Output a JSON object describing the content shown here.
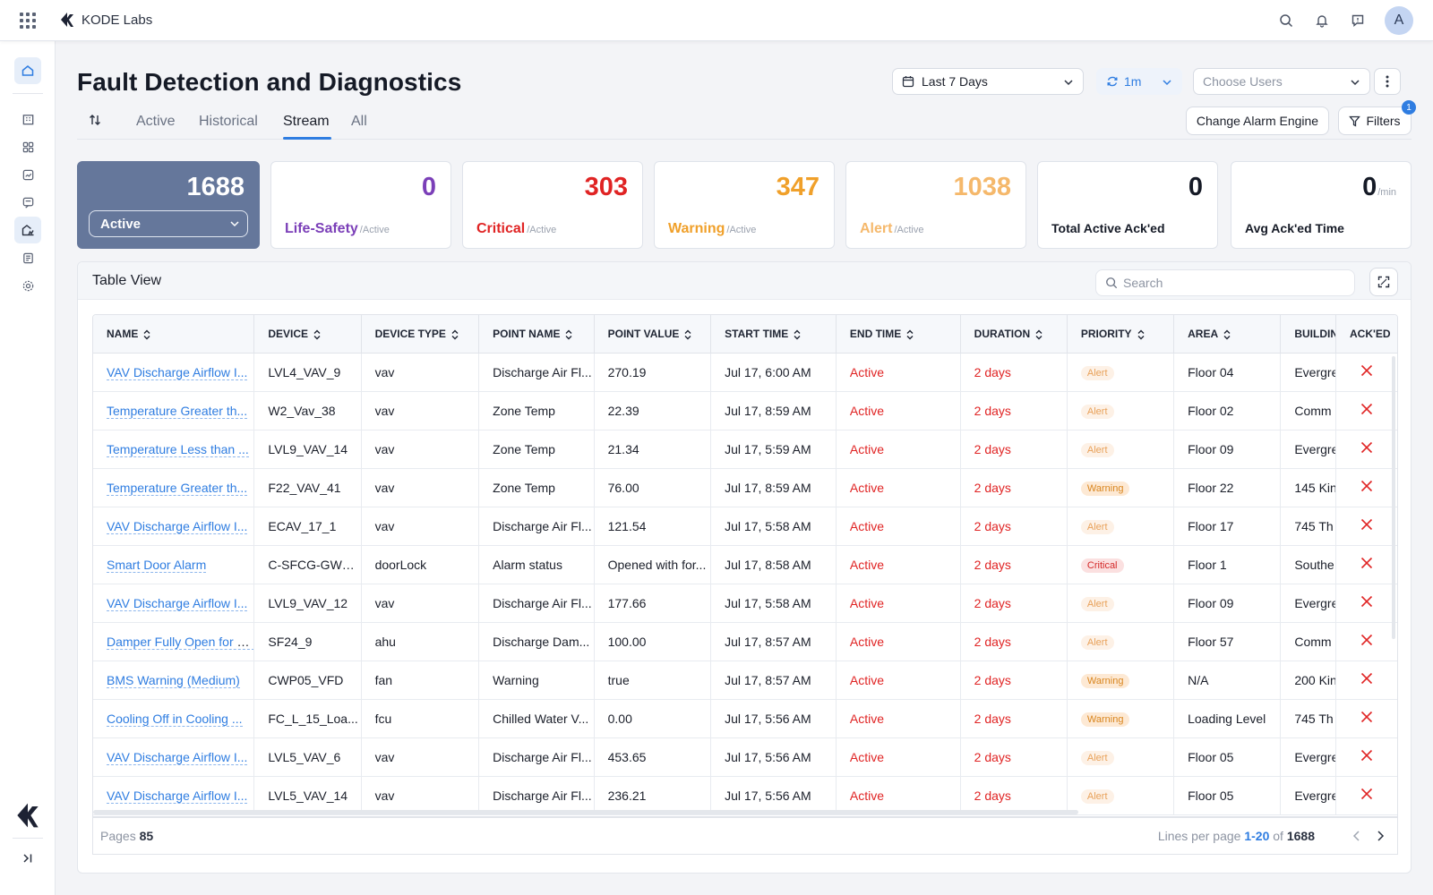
{
  "app": {
    "brand": "KODE Labs",
    "avatar_initial": "A"
  },
  "icons": {
    "apps": "grid-icon",
    "search": "search-icon",
    "notifications": "bell-icon",
    "messages": "chat-icon",
    "sidebar": [
      "home-icon",
      "building-icon",
      "apps-icon",
      "analytics-icon",
      "tasks-icon",
      "fdd-icon",
      "reports-icon",
      "settings-icon"
    ]
  },
  "header": {
    "title": "Fault Detection and Diagnostics",
    "date_range": "Last 7 Days",
    "refresh_interval": "1m",
    "users_placeholder": "Choose Users"
  },
  "tabs": [
    {
      "label": "Active",
      "active": false
    },
    {
      "label": "Historical",
      "active": false
    },
    {
      "label": "Stream",
      "active": true
    },
    {
      "label": "All",
      "active": false
    }
  ],
  "actions": {
    "change_engine": "Change Alarm Engine",
    "filters": "Filters",
    "filters_count": "1"
  },
  "stats": {
    "active": {
      "value": "1688",
      "select": "Active"
    },
    "life_safety": {
      "value": "0",
      "label": "Life-Safety",
      "sub": "/Active"
    },
    "critical": {
      "value": "303",
      "label": "Critical",
      "sub": "/Active"
    },
    "warning": {
      "value": "347",
      "label": "Warning",
      "sub": "/Active"
    },
    "alert": {
      "value": "1038",
      "label": "Alert",
      "sub": "/Active"
    },
    "total_acked": {
      "value": "0",
      "label": "Total Active Ack'ed"
    },
    "avg_acked": {
      "value": "0",
      "unit": "/min",
      "label": "Avg Ack'ed Time"
    }
  },
  "colors": {
    "accent": "#2f7de1",
    "life_safety": "#7b3fb8",
    "critical": "#e02424",
    "warning": "#f0a02a",
    "alert": "#f5b86b",
    "active_card": "#65779b"
  },
  "table": {
    "title": "Table View",
    "search_placeholder": "Search",
    "columns": [
      "NAME",
      "DEVICE",
      "DEVICE TYPE",
      "POINT NAME",
      "POINT VALUE",
      "START TIME",
      "END TIME",
      "DURATION",
      "PRIORITY",
      "AREA",
      "BUILDIN",
      "ACK'ED"
    ],
    "rows": [
      {
        "name": "VAV Discharge Airflow I...",
        "device": "LVL4_VAV_9",
        "type": "vav",
        "point": "Discharge Air Fl...",
        "value": "270.19",
        "start": "Jul 17, 6:00 AM",
        "end": "Active",
        "duration": "2 days",
        "priority": "Alert",
        "area": "Floor 04",
        "building": "Evergre"
      },
      {
        "name": "Temperature Greater th...",
        "device": "W2_Vav_38",
        "type": "vav",
        "point": "Zone Temp",
        "value": "22.39",
        "start": "Jul 17, 8:59 AM",
        "end": "Active",
        "duration": "2 days",
        "priority": "Alert",
        "area": "Floor 02",
        "building": "Comm"
      },
      {
        "name": "Temperature Less than ...",
        "device": "LVL9_VAV_14",
        "type": "vav",
        "point": "Zone Temp",
        "value": "21.34",
        "start": "Jul 17, 5:59 AM",
        "end": "Active",
        "duration": "2 days",
        "priority": "Alert",
        "area": "Floor 09",
        "building": "Evergre"
      },
      {
        "name": "Temperature Greater th...",
        "device": "F22_VAV_41",
        "type": "vav",
        "point": "Zone Temp",
        "value": "76.00",
        "start": "Jul 17, 8:59 AM",
        "end": "Active",
        "duration": "2 days",
        "priority": "Warning",
        "area": "Floor 22",
        "building": "145 Kin"
      },
      {
        "name": "VAV Discharge Airflow I...",
        "device": "ECAV_17_1",
        "type": "vav",
        "point": "Discharge Air Fl...",
        "value": "121.54",
        "start": "Jul 17, 5:58 AM",
        "end": "Active",
        "duration": "2 days",
        "priority": "Alert",
        "area": "Floor 17",
        "building": "745 Th"
      },
      {
        "name": "Smart Door Alarm",
        "device": "C-SFCG-GWL-...",
        "type": "doorLock",
        "point": "Alarm status",
        "value": "Opened with for...",
        "start": "Jul 17, 8:58 AM",
        "end": "Active",
        "duration": "2 days",
        "priority": "Critical",
        "area": "Floor 1",
        "building": "Southe"
      },
      {
        "name": "VAV Discharge Airflow I...",
        "device": "LVL9_VAV_12",
        "type": "vav",
        "point": "Discharge Air Fl...",
        "value": "177.66",
        "start": "Jul 17, 5:58 AM",
        "end": "Active",
        "duration": "2 days",
        "priority": "Alert",
        "area": "Floor 09",
        "building": "Evergre"
      },
      {
        "name": "Damper Fully Open for L...",
        "device": "SF24_9",
        "type": "ahu",
        "point": "Discharge Dam...",
        "value": "100.00",
        "start": "Jul 17, 8:57 AM",
        "end": "Active",
        "duration": "2 days",
        "priority": "Alert",
        "area": "Floor 57",
        "building": "Comm"
      },
      {
        "name": "BMS Warning (Medium)",
        "device": "CWP05_VFD",
        "type": "fan",
        "point": "Warning",
        "value": "true",
        "start": "Jul 17, 8:57 AM",
        "end": "Active",
        "duration": "2 days",
        "priority": "Warning",
        "area": "N/A",
        "building": "200 Kin"
      },
      {
        "name": "Cooling Off in Cooling ...",
        "device": "FC_L_15_Loa...",
        "type": "fcu",
        "point": "Chilled Water V...",
        "value": "0.00",
        "start": "Jul 17, 5:56 AM",
        "end": "Active",
        "duration": "2 days",
        "priority": "Warning",
        "area": "Loading Level",
        "building": "745 Th"
      },
      {
        "name": "VAV Discharge Airflow I...",
        "device": "LVL5_VAV_6",
        "type": "vav",
        "point": "Discharge Air Fl...",
        "value": "453.65",
        "start": "Jul 17, 5:56 AM",
        "end": "Active",
        "duration": "2 days",
        "priority": "Alert",
        "area": "Floor 05",
        "building": "Evergre"
      },
      {
        "name": "VAV Discharge Airflow I...",
        "device": "LVL5_VAV_14",
        "type": "vav",
        "point": "Discharge Air Fl...",
        "value": "236.21",
        "start": "Jul 17, 5:56 AM",
        "end": "Active",
        "duration": "2 days",
        "priority": "Alert",
        "area": "Floor 05",
        "building": "Evergre"
      }
    ]
  },
  "pagination": {
    "pages_label": "Pages",
    "pages": "85",
    "lines_label": "Lines per page",
    "range": "1-20",
    "of_label": "of",
    "total": "1688"
  }
}
